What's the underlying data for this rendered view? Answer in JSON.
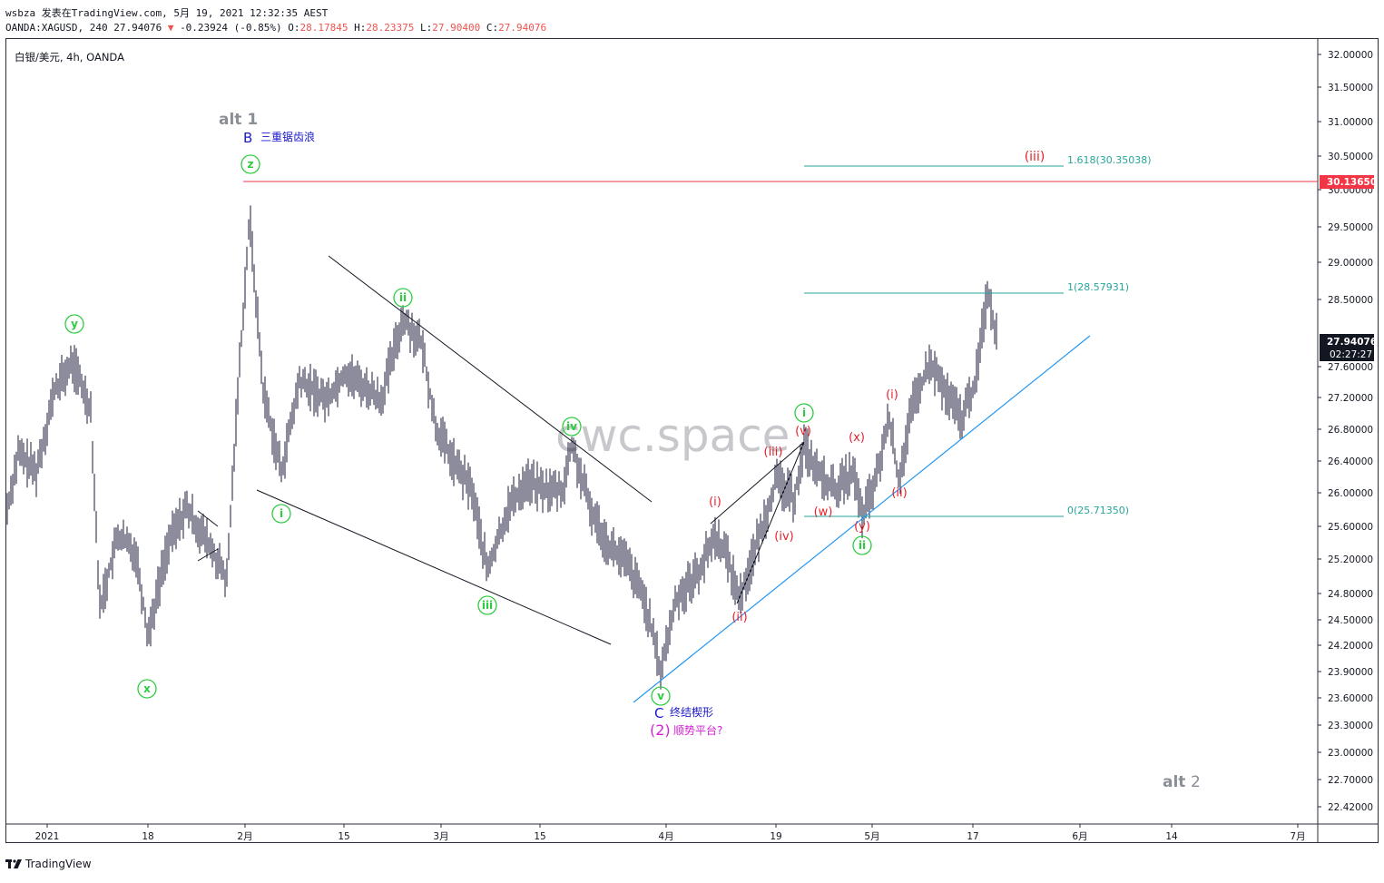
{
  "header": {
    "line1": "wsbza 发表在TradingView.com, 5月 19, 2021 12:32:35 AEST",
    "symbol_info": "OANDA:XAGUSD, 240 27.94076",
    "change": "-0.23924 (-0.85%)",
    "o_label": "O:",
    "o_value": "28.17845",
    "h_label": "H:",
    "h_value": "28.23375",
    "l_label": "L:",
    "l_value": "27.90400",
    "c_label": "C:",
    "c_value": "27.94076"
  },
  "chart": {
    "symbol_label": "白银/美元, 4h, OANDA",
    "watermark": "cwc.space",
    "last_price": "27.94076",
    "countdown": "02:27:27",
    "red_line_price": "30.13650",
    "y_ticks": [
      "32.00000",
      "31.50000",
      "31.00000",
      "30.50000",
      "30.00000",
      "29.50000",
      "29.00000",
      "28.50000",
      "27.60000",
      "27.20000",
      "26.80000",
      "26.40000",
      "26.00000",
      "25.60000",
      "25.20000",
      "24.80000",
      "24.50000",
      "24.20000",
      "23.90000",
      "23.60000",
      "23.30000",
      "23.00000",
      "22.70000",
      "22.42000"
    ],
    "x_ticks": [
      "2021",
      "18",
      "2月",
      "15",
      "3月",
      "15",
      "4月",
      "19",
      "5月",
      "17",
      "6月",
      "14",
      "7月"
    ],
    "fib": [
      {
        "label": "1.618(30.35038)"
      },
      {
        "label": "1(28.57931)"
      },
      {
        "label": "0(25.71350)"
      }
    ],
    "annotations": {
      "alt1": "alt 1",
      "alt2_text": "alt",
      "alt2_num": "2",
      "wave_B": "B",
      "triple_zigzag": "三重锯齿浪",
      "wave_C": "C",
      "ending_diagonal": "终结楔形",
      "wave_2": "(2)",
      "flat_question": "顺势平台?"
    },
    "green_circle_labels": [
      "z",
      "y",
      "x",
      "i",
      "ii",
      "iii",
      "iv",
      "v",
      "i",
      "ii"
    ],
    "red_labels": [
      "(i)",
      "(ii)",
      "(iii)",
      "(iv)",
      "(v)",
      "(w)",
      "(x)",
      "(y)",
      "(i)",
      "(ii)",
      "(iii)"
    ],
    "colors": {
      "candle": "#1a1a3a",
      "red_line": "#f23645",
      "fib_line": "#26a69a",
      "fib_text": "#26a69a",
      "trend_blue": "#2196f3",
      "wave_green": "#2ecc40",
      "wave_red": "#e8202a",
      "wave_blue": "#1a1acc",
      "wave_magenta": "#d61fd6",
      "price_badge": "#131722",
      "red_badge": "#f23645"
    }
  },
  "footer": {
    "brand": "TradingView"
  }
}
